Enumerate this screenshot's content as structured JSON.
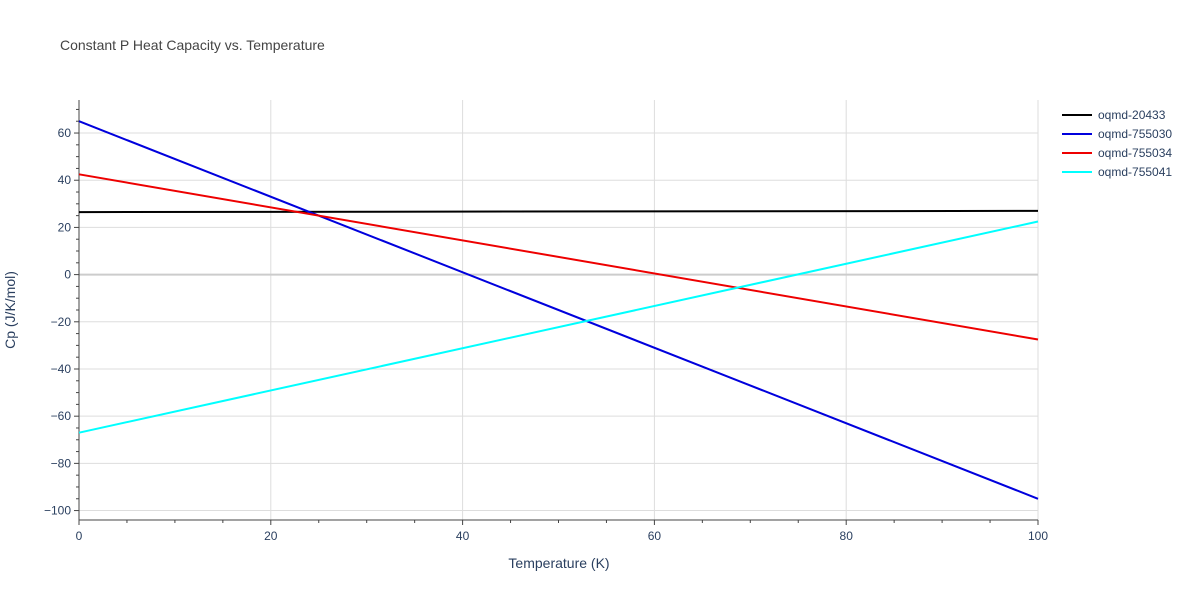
{
  "chart_data": {
    "type": "line",
    "title": "Constant P Heat Capacity vs. Temperature",
    "xlabel": "Temperature (K)",
    "ylabel": "Cp (J/K/mol)",
    "xlim": [
      0,
      100
    ],
    "ylim": [
      -104,
      74
    ],
    "x_ticks": [
      0,
      20,
      40,
      60,
      80,
      100
    ],
    "x_tick_labels": [
      "0",
      "20",
      "40",
      "60",
      "80",
      "100"
    ],
    "y_ticks": [
      -100,
      -80,
      -60,
      -40,
      -20,
      0,
      20,
      40,
      60
    ],
    "y_tick_labels": [
      "−100",
      "−80",
      "−60",
      "−40",
      "−20",
      "0",
      "20",
      "40",
      "60"
    ],
    "grid": true,
    "legend_position": "top-right",
    "colors": {
      "grid": "#dddddd",
      "zeroline": "#cccccc",
      "axis_text": "#2a3f5f",
      "title_text": "#444444"
    },
    "series": [
      {
        "name": "oqmd-20433",
        "color": "#000000",
        "x": [
          0,
          100
        ],
        "y": [
          26.5,
          27.0
        ]
      },
      {
        "name": "oqmd-755030",
        "color": "#0000dd",
        "x": [
          0,
          100
        ],
        "y": [
          65.0,
          -95.0
        ]
      },
      {
        "name": "oqmd-755034",
        "color": "#ee0000",
        "x": [
          0,
          100
        ],
        "y": [
          42.5,
          -27.5
        ]
      },
      {
        "name": "oqmd-755041",
        "color": "#00ffff",
        "x": [
          0,
          100
        ],
        "y": [
          -67.0,
          22.5
        ]
      }
    ]
  }
}
